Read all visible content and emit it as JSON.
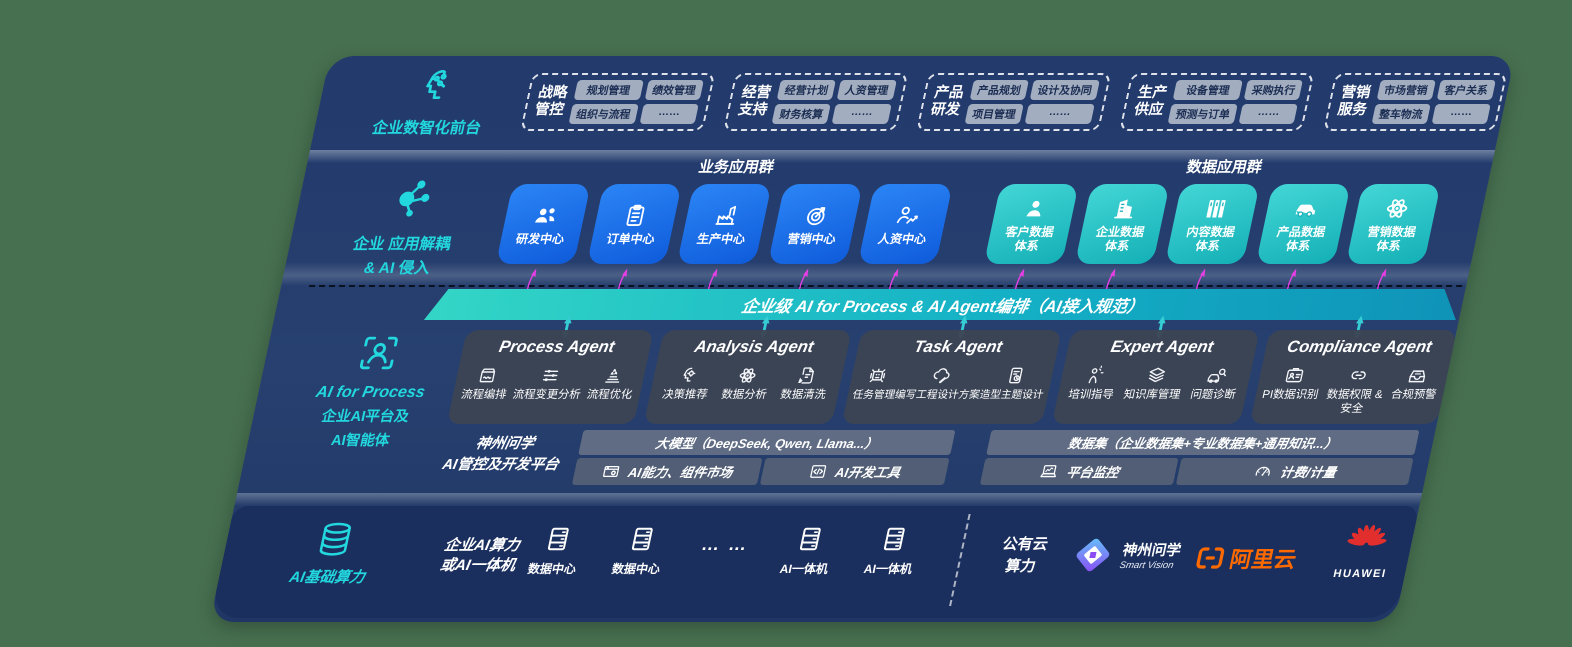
{
  "colors": {
    "background": "#477050",
    "panel_navy": "#21386a",
    "infra_navy": "#1b2f5e",
    "accent_teal": "#22d8de",
    "banner_teal_start": "#2fd3c3",
    "banner_teal_end": "#0f93b8",
    "business_blue": "#1a73ef",
    "data_teal": "#25c2c6",
    "agent_card_gray": "#3c4554",
    "platform_gray": "#5f6a7d",
    "chip_gray": "#a9b3c4",
    "arrow_magenta": "#e33fe3",
    "alicloud_orange": "#ff6a00",
    "huawei_red": "#e32e2e"
  },
  "connectors": {
    "flow_arrow_icon": "up-arrow",
    "bus_arrow_icon": "v-arrow"
  },
  "front_office": {
    "icon": "ai-brain",
    "label": "企业数智化前台",
    "groups": [
      {
        "title": "战略管控",
        "items": [
          "规划管理",
          "绩效管理",
          "组织与流程",
          "……"
        ]
      },
      {
        "title": "经营支持",
        "items": [
          "经营计划",
          "人资管理",
          "财务核算",
          "……"
        ]
      },
      {
        "title": "产品研发",
        "items": [
          "产品规划",
          "设计及协同",
          "项目管理",
          "……"
        ]
      },
      {
        "title": "生产供应",
        "items": [
          "设备管理",
          "采购执行",
          "预测与订单",
          "……"
        ]
      },
      {
        "title": "营销服务",
        "items": [
          "市场营销",
          "客户关系",
          "整车物流",
          "……"
        ]
      }
    ]
  },
  "decoupling": {
    "icon": "molecule",
    "label_line1": "企业 应用解耦",
    "label_line2": "& AI 侵入",
    "business": {
      "title": "业务应用群",
      "items": [
        {
          "label": "研发中心",
          "icon": "team"
        },
        {
          "label": "订单中心",
          "icon": "clipboard"
        },
        {
          "label": "生产中心",
          "icon": "factory"
        },
        {
          "label": "营销中心",
          "icon": "target"
        },
        {
          "label": "人资中心",
          "icon": "hr-person"
        }
      ]
    },
    "data": {
      "title": "数据应用群",
      "items": [
        {
          "label": "客户数据体系",
          "icon": "person"
        },
        {
          "label": "企业数据体系",
          "icon": "building"
        },
        {
          "label": "内容数据体系",
          "icon": "books"
        },
        {
          "label": "产品数据体系",
          "icon": "car"
        },
        {
          "label": "营销数据体系",
          "icon": "atom"
        }
      ]
    }
  },
  "banner": {
    "text": "企业级 AI for Process & AI Agent编排（AI接入规范）"
  },
  "agents": {
    "icon": "scan-person",
    "label_line1": "AI for Process",
    "label_line2": "企业AI平台及",
    "label_line3": "AI智能体",
    "cards": [
      {
        "title": "Process Agent",
        "items": [
          {
            "label": "流程编排",
            "icon": "flow-box"
          },
          {
            "label": "流程变更分析",
            "icon": "sliders"
          },
          {
            "label": "流程优化",
            "icon": "spark-stack"
          }
        ]
      },
      {
        "title": "Analysis Agent",
        "items": [
          {
            "label": "决策推荐",
            "icon": "head-gear"
          },
          {
            "label": "数据分析",
            "icon": "atom"
          },
          {
            "label": "数据清洗",
            "icon": "doc-clean"
          }
        ]
      },
      {
        "title": "Task Agent",
        "items": [
          {
            "label": "任务管理",
            "icon": "robot"
          },
          {
            "label": "编写工程设计方案",
            "icon": "cloud-pen"
          },
          {
            "label": "造型主题设计",
            "icon": "tablet-check"
          }
        ]
      },
      {
        "title": "Expert Agent",
        "items": [
          {
            "label": "培训指导",
            "icon": "mentor"
          },
          {
            "label": "知识库管理",
            "icon": "layers"
          },
          {
            "label": "问题诊断",
            "icon": "diagnose"
          }
        ]
      },
      {
        "title": "Compliance Agent",
        "items": [
          {
            "label": "PI数据识别",
            "icon": "id-card"
          },
          {
            "label": "数据权限 & 安全",
            "icon": "link-rings"
          },
          {
            "label": "合规预警",
            "icon": "inbox-alert"
          }
        ]
      }
    ]
  },
  "platform": {
    "label_line1": "神州问学",
    "label_line2": "AI管控及开发平台",
    "model_bar": "大模型（DeepSeek, Qwen, Llama...）",
    "capability_market": {
      "label": "AI能力、组件市场",
      "icon": "window-gear"
    },
    "dev_tools": {
      "label": "AI开发工具",
      "icon": "code-doc"
    },
    "dataset_bar": "数据集（企业数据集+专业数据集+通用知识...）",
    "monitor": {
      "label": "平台监控",
      "icon": "laptop-chart"
    },
    "billing": {
      "label": "计费/计量",
      "icon": "gauge"
    }
  },
  "infra": {
    "icon": "database",
    "label": "AI基础算力",
    "compute_line1": "企业AI算力",
    "compute_line2": "或AI一体机",
    "nodes": [
      {
        "label": "数据中心",
        "icon": "server"
      },
      {
        "label": "数据中心",
        "icon": "server"
      },
      {
        "label": "… …",
        "icon": ""
      },
      {
        "label": "AI一体机",
        "icon": "server"
      },
      {
        "label": "AI一体机",
        "icon": "server"
      }
    ],
    "cloud_line1": "公有云",
    "cloud_line2": "算力",
    "logos": {
      "smart_vision_icon": "sv-diamond",
      "smart_vision_cn": "神州问学",
      "smart_vision_en": "Smart Vision",
      "alicloud_icon": "ali-mark",
      "alicloud": "阿里云",
      "huawei_icon": "huawei",
      "huawei": "HUAWEI"
    }
  }
}
